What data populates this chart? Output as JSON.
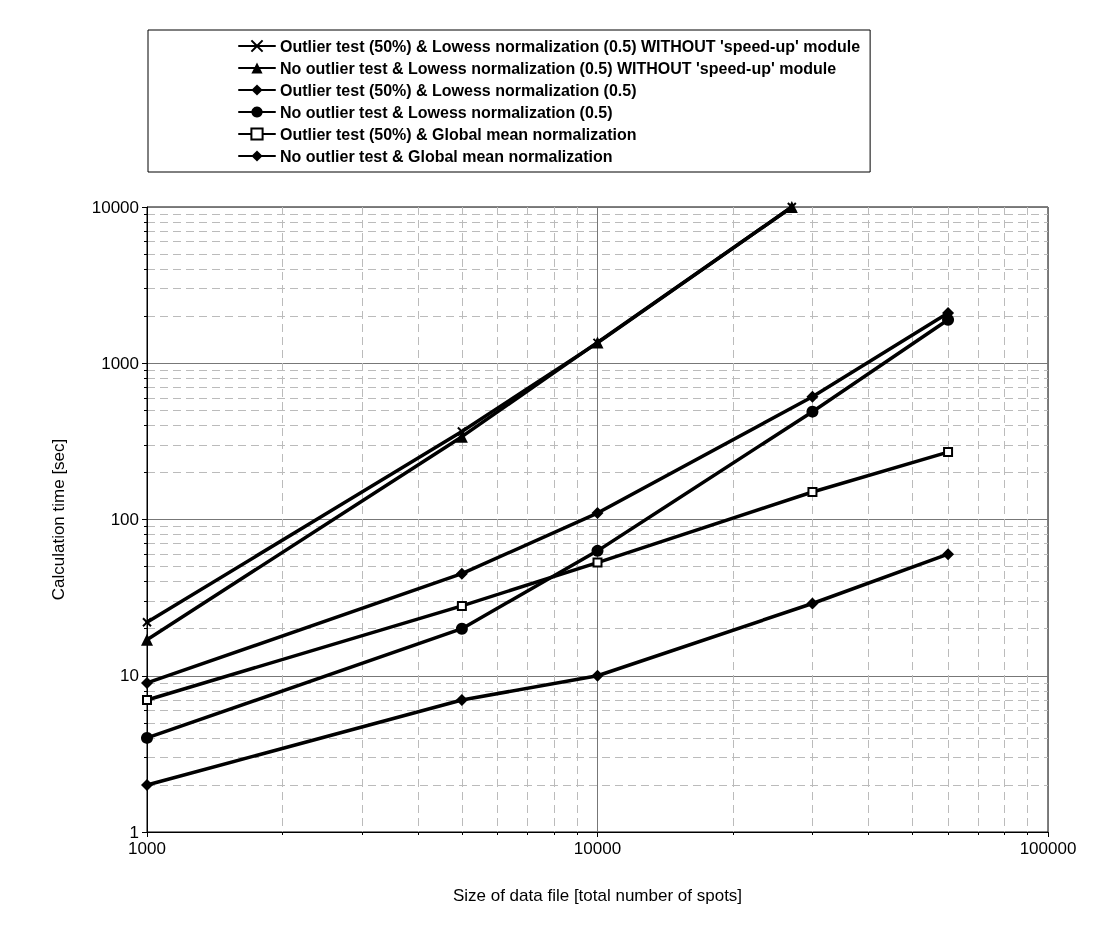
{
  "chart_data": {
    "type": "line",
    "xlabel": "Size of data file [total number of spots]",
    "ylabel": "Calculation time [sec]",
    "x": [
      1000,
      5000,
      10000,
      30000,
      60000
    ],
    "series": [
      {
        "name": "Outlier test (50%) & Lowess normalization (0.5) WITHOUT 'speed-up' module",
        "color": "#000000",
        "marker": "cross",
        "x": [
          1000,
          5000,
          10000,
          27000
        ],
        "values": [
          22,
          366,
          1350,
          10000
        ]
      },
      {
        "name": "No outlier test & Lowess normalization (0.5) WITHOUT 'speed-up' module",
        "color": "#000000",
        "marker": "triangle",
        "x": [
          1000,
          5000,
          10000,
          27000
        ],
        "values": [
          17,
          339,
          1360,
          10000
        ]
      },
      {
        "name": "Outlier test (50%) & Lowess normalization (0.5)",
        "color": "#000000",
        "marker": "diamond",
        "values": [
          9,
          45,
          110,
          610,
          2100
        ]
      },
      {
        "name": "No outlier test & Lowess normalization (0.5)",
        "color": "#000000",
        "marker": "circle",
        "values": [
          4,
          20,
          63,
          490,
          1900
        ]
      },
      {
        "name": "Outlier test (50%) & Global mean normalization",
        "color": "#000000",
        "marker": "square",
        "values": [
          7,
          28,
          53,
          150,
          270
        ]
      },
      {
        "name": "No outlier test & Global mean normalization",
        "color": "#000000",
        "marker": "diamond",
        "values": [
          2,
          7,
          10,
          29,
          60
        ]
      }
    ],
    "xlim": [
      1000,
      100000
    ],
    "xticks": [
      1000,
      10000,
      100000
    ],
    "ylim": [
      1,
      10000
    ],
    "yticks": [
      1,
      10,
      100,
      1000,
      10000
    ],
    "log": "xy",
    "grid": true,
    "legend": "top",
    "line_style": "solid"
  }
}
